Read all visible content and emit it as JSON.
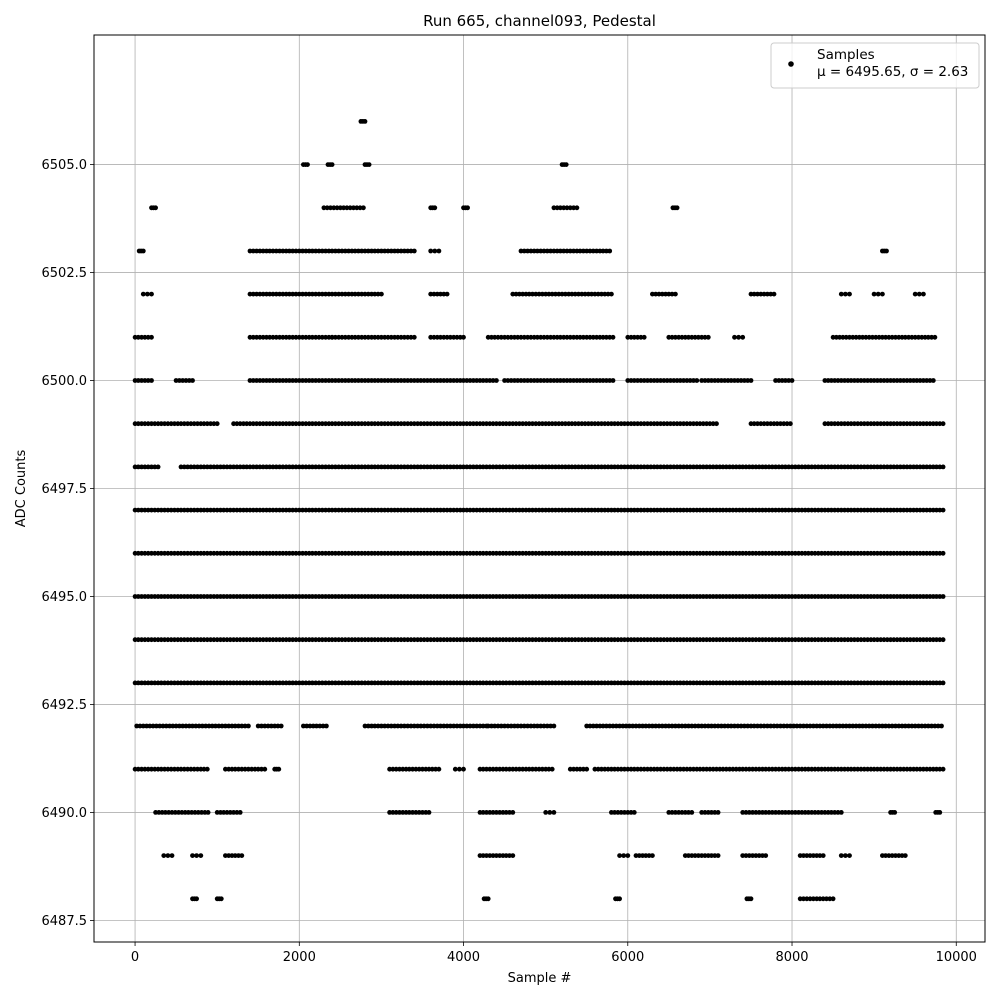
{
  "chart_data": {
    "type": "scatter",
    "title": "Run 665, channel093, Pedestal",
    "xlabel": "Sample #",
    "ylabel": "ADC Counts",
    "xlim": [
      -500,
      10350
    ],
    "ylim": [
      6487.0,
      6508.0
    ],
    "xticks": [
      0,
      2000,
      4000,
      6000,
      8000,
      10000
    ],
    "xtick_labels": [
      "0",
      "2000",
      "4000",
      "6000",
      "8000",
      "10000"
    ],
    "yticks": [
      6487.5,
      6490.0,
      6492.5,
      6495.0,
      6497.5,
      6500.0,
      6502.5,
      6505.0
    ],
    "ytick_labels": [
      "6487.5",
      "6490.0",
      "6492.5",
      "6495.0",
      "6497.5",
      "6500.0",
      "6502.5",
      "6505.0"
    ],
    "grid": true,
    "legend_position": "top-right",
    "marker_color": "#000000",
    "series": [
      {
        "name": "Samples",
        "label_line2": "μ = 6495.65, σ = 2.63",
        "segments": [
          {
            "y": 6497,
            "ranges": [
              [
                0,
                9850
              ]
            ]
          },
          {
            "y": 6496,
            "ranges": [
              [
                0,
                9850
              ]
            ]
          },
          {
            "y": 6495,
            "ranges": [
              [
                0,
                9850
              ]
            ]
          },
          {
            "y": 6494,
            "ranges": [
              [
                0,
                9850
              ]
            ]
          },
          {
            "y": 6493,
            "ranges": [
              [
                0,
                9850
              ]
            ]
          },
          {
            "y": 6498,
            "ranges": [
              [
                0,
                300
              ],
              [
                560,
                9850
              ]
            ]
          },
          {
            "y": 6499,
            "ranges": [
              [
                0,
                1000
              ],
              [
                1200,
                7100
              ],
              [
                7500,
                8000
              ],
              [
                8400,
                9850
              ]
            ]
          },
          {
            "y": 6492,
            "ranges": [
              [
                20,
                1400
              ],
              [
                1500,
                1800
              ],
              [
                2050,
                2350
              ],
              [
                2800,
                4300
              ],
              [
                4300,
                5100
              ],
              [
                5500,
                9850
              ]
            ]
          },
          {
            "y": 6500,
            "ranges": [
              [
                0,
                200
              ],
              [
                500,
                700
              ],
              [
                1400,
                4400
              ],
              [
                4500,
                5850
              ],
              [
                6000,
                6850
              ],
              [
                6900,
                7500
              ],
              [
                7800,
                8000
              ],
              [
                8400,
                9750
              ]
            ]
          },
          {
            "y": 6501,
            "ranges": [
              [
                0,
                200
              ],
              [
                1400,
                2400
              ],
              [
                2400,
                3400
              ],
              [
                3600,
                4000
              ],
              [
                4300,
                5850
              ],
              [
                6000,
                6200
              ],
              [
                6500,
                7000
              ],
              [
                7300,
                7400
              ],
              [
                8500,
                9750
              ]
            ]
          },
          {
            "y": 6491,
            "ranges": [
              [
                0,
                900
              ],
              [
                1100,
                1600
              ],
              [
                1700,
                1750
              ],
              [
                3100,
                3700
              ],
              [
                3900,
                4000
              ],
              [
                4200,
                5100
              ],
              [
                5300,
                5500
              ],
              [
                5600,
                9850
              ]
            ]
          },
          {
            "y": 6490,
            "ranges": [
              [
                250,
                900
              ],
              [
                1000,
                1300
              ],
              [
                3100,
                3600
              ],
              [
                4200,
                4600
              ],
              [
                5000,
                5100
              ],
              [
                5800,
                6100
              ],
              [
                6500,
                6800
              ],
              [
                6900,
                7100
              ],
              [
                7400,
                8600
              ],
              [
                9200,
                9250
              ],
              [
                9750,
                9800
              ]
            ]
          },
          {
            "y": 6502,
            "ranges": [
              [
                100,
                200
              ],
              [
                1400,
                3000
              ],
              [
                3600,
                3800
              ],
              [
                4600,
                5800
              ],
              [
                6300,
                6600
              ],
              [
                7500,
                7800
              ],
              [
                8600,
                8700
              ],
              [
                9000,
                9100
              ],
              [
                9500,
                9600
              ]
            ]
          },
          {
            "y": 6503,
            "ranges": [
              [
                50,
                100
              ],
              [
                1400,
                3400
              ],
              [
                3600,
                3700
              ],
              [
                4700,
                5800
              ],
              [
                9100,
                9150
              ]
            ]
          },
          {
            "y": 6489,
            "ranges": [
              [
                350,
                450
              ],
              [
                700,
                800
              ],
              [
                1100,
                1300
              ],
              [
                4200,
                4600
              ],
              [
                5900,
                6000
              ],
              [
                6100,
                6300
              ],
              [
                6700,
                7100
              ],
              [
                7400,
                7700
              ],
              [
                8100,
                8400
              ],
              [
                8600,
                8700
              ],
              [
                9100,
                9400
              ]
            ]
          },
          {
            "y": 6504,
            "ranges": [
              [
                200,
                250
              ],
              [
                2300,
                2800
              ],
              [
                3600,
                3650
              ],
              [
                4000,
                4050
              ],
              [
                5100,
                5400
              ],
              [
                6550,
                6600
              ]
            ]
          },
          {
            "y": 6505,
            "ranges": [
              [
                2050,
                2100
              ],
              [
                2350,
                2400
              ],
              [
                2800,
                2850
              ],
              [
                5200,
                5250
              ]
            ]
          },
          {
            "y": 6506,
            "ranges": [
              [
                2750,
                2800
              ]
            ]
          },
          {
            "y": 6488,
            "ranges": [
              [
                700,
                750
              ],
              [
                1000,
                1050
              ],
              [
                4250,
                4300
              ],
              [
                5850,
                5900
              ],
              [
                7450,
                7500
              ],
              [
                8100,
                8500
              ]
            ]
          }
        ]
      }
    ]
  }
}
